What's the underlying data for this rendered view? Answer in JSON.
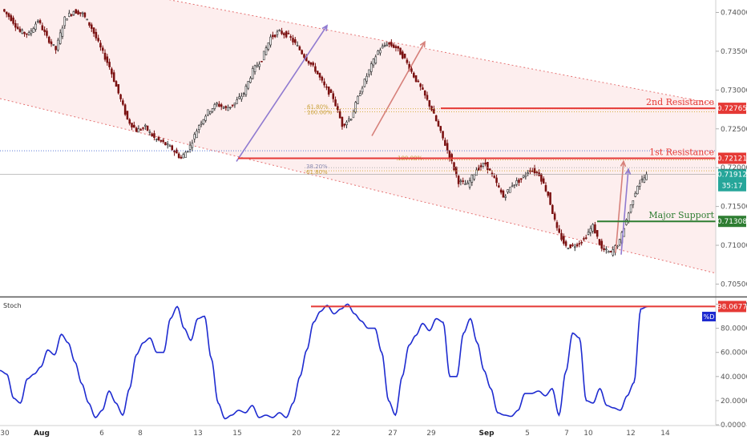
{
  "chart_data": [
    {
      "type": "candlestick",
      "panel": "price",
      "y_axis": {
        "ticks": [
          "0.74000",
          "0.73500",
          "0.73000",
          "0.72500",
          "0.72000",
          "0.71500",
          "0.71000",
          "0.70500"
        ],
        "range": [
          0.7035,
          0.7416
        ]
      },
      "x_axis": {
        "ticks": [
          "30",
          "Aug",
          "6",
          "8",
          "13",
          "15",
          "20",
          "22",
          "27",
          "29",
          "Sep",
          "5",
          "7",
          "10",
          "12",
          "14"
        ]
      },
      "levels": [
        {
          "label": "2nd Resistance",
          "value": "0.72765",
          "color": "#e53935"
        },
        {
          "label": "1st Resistance",
          "value": "0.72121",
          "color": "#e53935"
        },
        {
          "label": "Major Support",
          "value": "0.71308",
          "color": "#2e7d32"
        }
      ],
      "current_price": {
        "value": "0.71912",
        "countdown": "35:17",
        "color": "#26a69a"
      },
      "fib_labels": [
        "61.80%",
        "100.00%",
        "100.00%",
        "38.20%",
        "61.80%"
      ],
      "close_series": [
        0.7404,
        0.7392,
        0.7375,
        0.7372,
        0.739,
        0.7368,
        0.7352,
        0.7392,
        0.7402,
        0.7398,
        0.738,
        0.7354,
        0.733,
        0.7296,
        0.7262,
        0.7248,
        0.7252,
        0.7238,
        0.7232,
        0.7224,
        0.7212,
        0.7228,
        0.7255,
        0.7272,
        0.7282,
        0.7276,
        0.7283,
        0.7296,
        0.7325,
        0.734,
        0.7368,
        0.7375,
        0.737,
        0.7356,
        0.734,
        0.7326,
        0.7305,
        0.729,
        0.7255,
        0.7265,
        0.7298,
        0.7325,
        0.735,
        0.736,
        0.7355,
        0.734,
        0.7318,
        0.7298,
        0.7275,
        0.7245,
        0.7215,
        0.7182,
        0.7178,
        0.7198,
        0.7205,
        0.7185,
        0.7162,
        0.7178,
        0.7185,
        0.7198,
        0.7192,
        0.7165,
        0.712,
        0.7098,
        0.71,
        0.7108,
        0.7125,
        0.7095,
        0.709,
        0.7105,
        0.7142,
        0.7178,
        0.719
      ]
    },
    {
      "type": "line",
      "panel": "oscillator",
      "indicator_label": "Stoch",
      "series": [
        {
          "name": "%D",
          "color": "#1e2bd0"
        }
      ],
      "y_axis": {
        "ticks": [
          "100.0000",
          "80.0000",
          "60.0000",
          "40.0000",
          "20.0000",
          "0.0000"
        ],
        "range": [
          0,
          105
        ]
      },
      "last_value": "98.0677",
      "reference_line": {
        "value": 98.0677,
        "color": "#e53935"
      },
      "values": [
        45,
        42,
        22,
        18,
        38,
        42,
        48,
        62,
        58,
        75,
        68,
        52,
        34,
        18,
        6,
        12,
        28,
        18,
        8,
        30,
        58,
        68,
        72,
        60,
        60,
        88,
        98,
        80,
        70,
        88,
        90,
        55,
        18,
        5,
        8,
        12,
        10,
        16,
        6,
        8,
        6,
        10,
        6,
        18,
        40,
        62,
        85,
        94,
        99,
        92,
        96,
        100,
        92,
        86,
        80,
        80,
        60,
        20,
        8,
        40,
        66,
        74,
        84,
        78,
        88,
        85,
        40,
        40,
        76,
        88,
        68,
        45,
        30,
        10,
        8,
        7,
        12,
        26,
        26,
        28,
        24,
        30,
        8,
        44,
        76,
        72,
        20,
        18,
        30,
        16,
        14,
        12,
        24,
        35,
        96,
        98
      ]
    }
  ]
}
